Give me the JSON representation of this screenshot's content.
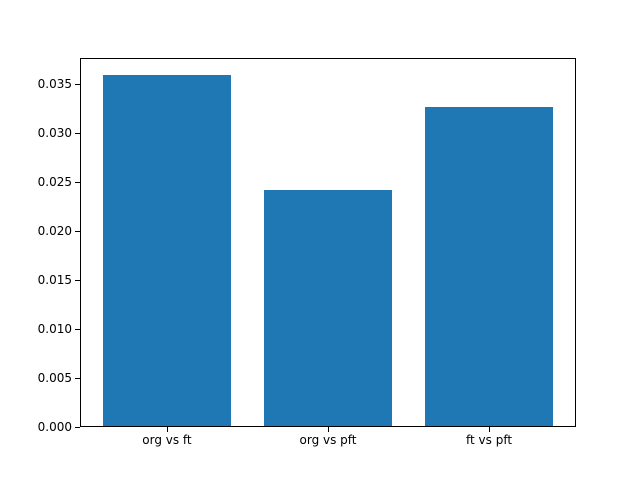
{
  "chart_data": {
    "type": "bar",
    "categories": [
      "org vs ft",
      "org vs pft",
      "ft vs pft"
    ],
    "values": [
      0.0358,
      0.024,
      0.0325
    ],
    "title": "",
    "xlabel": "",
    "ylabel": "",
    "ylim": [
      0,
      0.0376
    ],
    "ytick_labels": [
      "0.000",
      "0.005",
      "0.010",
      "0.015",
      "0.020",
      "0.025",
      "0.030",
      "0.035"
    ],
    "bar_color": "#1f77b4",
    "axis_color": "#000000",
    "grid": false,
    "legend": null
  }
}
